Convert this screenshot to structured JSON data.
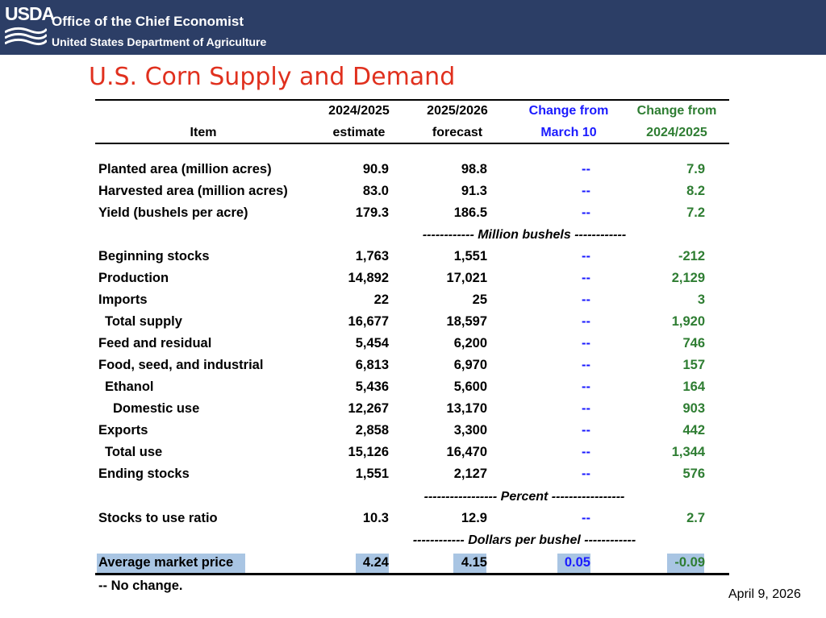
{
  "banner": {
    "logo_text": "USDA",
    "line1": "Office of the Chief Economist",
    "line2": "United States Department of Agriculture"
  },
  "title": "U.S. Corn Supply and Demand",
  "headers": {
    "item": "Item",
    "col1_line1": "2024/2025",
    "col1_line2": "estimate",
    "col2_line1": "2025/2026",
    "col2_line2": "forecast",
    "col3_line1": "Change from",
    "col3_line2": "March 10",
    "col4_line1": "Change from",
    "col4_line2": "2024/2025"
  },
  "rows": [
    {
      "item": "Planted area (million acres)",
      "v1": "90.9",
      "v2": "98.8",
      "ch": "--",
      "ch2": "7.9"
    },
    {
      "item": "Harvested area (million acres)",
      "v1": "83.0",
      "v2": "91.3",
      "ch": "--",
      "ch2": "8.2"
    },
    {
      "item": "Yield (bushels per acre)",
      "v1": "179.3",
      "v2": "186.5",
      "ch": "--",
      "ch2": "7.2"
    },
    {
      "item": "Beginning stocks",
      "v1": "1,763",
      "v2": "1,551",
      "ch": "--",
      "ch2": "-212"
    },
    {
      "item": "Production",
      "v1": "14,892",
      "v2": "17,021",
      "ch": "--",
      "ch2": "2,129"
    },
    {
      "item": "Imports",
      "v1": "22",
      "v2": "25",
      "ch": "--",
      "ch2": "3"
    },
    {
      "item": "Total supply",
      "v1": "16,677",
      "v2": "18,597",
      "ch": "--",
      "ch2": "1,920"
    },
    {
      "item": "Feed and residual",
      "v1": "5,454",
      "v2": "6,200",
      "ch": "--",
      "ch2": "746"
    },
    {
      "item": "Food, seed, and industrial",
      "v1": "6,813",
      "v2": "6,970",
      "ch": "--",
      "ch2": "157"
    },
    {
      "item": "Ethanol",
      "v1": "5,436",
      "v2": "5,600",
      "ch": "--",
      "ch2": "164"
    },
    {
      "item": "Domestic use",
      "v1": "12,267",
      "v2": "13,170",
      "ch": "--",
      "ch2": "903"
    },
    {
      "item": "Exports",
      "v1": "2,858",
      "v2": "3,300",
      "ch": "--",
      "ch2": "442"
    },
    {
      "item": "Total use",
      "v1": "15,126",
      "v2": "16,470",
      "ch": "--",
      "ch2": "1,344"
    },
    {
      "item": "Ending stocks",
      "v1": "1,551",
      "v2": "2,127",
      "ch": "--",
      "ch2": "576"
    },
    {
      "item": "Stocks to use ratio",
      "v1": "10.3",
      "v2": "12.9",
      "ch": "--",
      "ch2": "2.7"
    },
    {
      "item": "Average market price",
      "v1": "4.24",
      "v2": "4.15",
      "ch": "0.05",
      "ch2": "-0.09"
    }
  ],
  "units": {
    "million_bushels": "------------ Million bushels ------------",
    "percent": "----------------- Percent -----------------",
    "dollars": "------------ Dollars per bushel ------------"
  },
  "footnote": "-- No change.",
  "date": "April 9, 2026",
  "colors": {
    "banner": "#2c3e66",
    "title": "#e0301e",
    "change_march": "#1a1aff",
    "change_year": "#2e7d32",
    "highlight": "#a9c5e3"
  }
}
